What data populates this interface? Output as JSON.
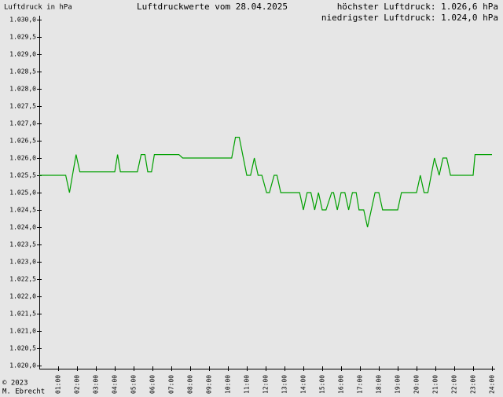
{
  "chart_data": {
    "type": "line",
    "title": "Luftdruckwerte vom 28.04.2025",
    "y_label": "Luftdruck in hPa",
    "annotations": [
      "höchster Luftdruck: 1.026,6 hPa",
      "niedrigster Luftdruck: 1.024,0 hPa"
    ],
    "footer": [
      "© 2023",
      "M. Ebrecht"
    ],
    "x": [
      0,
      1.4,
      1.6,
      1.95,
      2.15,
      4.0,
      4.15,
      4.3,
      5.2,
      5.4,
      5.6,
      5.75,
      5.95,
      6.1,
      7.4,
      7.6,
      10.2,
      10.4,
      10.6,
      11.0,
      11.2,
      11.4,
      11.6,
      11.8,
      12.05,
      12.2,
      12.45,
      12.6,
      12.8,
      13.8,
      14.0,
      14.2,
      14.4,
      14.6,
      14.8,
      15.0,
      15.2,
      15.5,
      15.6,
      15.8,
      16.0,
      16.2,
      16.4,
      16.6,
      16.8,
      16.95,
      17.2,
      17.4,
      17.8,
      18.0,
      18.2,
      19.0,
      19.2,
      20.0,
      20.2,
      20.4,
      20.6,
      20.95,
      21.2,
      21.4,
      21.6,
      21.8,
      22.8,
      23.0,
      23.1,
      24.0
    ],
    "series": [
      {
        "name": "Luftdruck",
        "color": "#00a000",
        "values": [
          1025.5,
          1025.5,
          1025.0,
          1026.1,
          1025.6,
          1025.6,
          1026.1,
          1025.6,
          1025.6,
          1026.1,
          1026.1,
          1025.6,
          1025.6,
          1026.1,
          1026.1,
          1026.0,
          1026.0,
          1026.6,
          1026.6,
          1025.5,
          1025.5,
          1026.0,
          1025.5,
          1025.5,
          1025.0,
          1025.0,
          1025.5,
          1025.5,
          1025.0,
          1025.0,
          1024.5,
          1025.0,
          1025.0,
          1024.5,
          1025.0,
          1024.5,
          1024.5,
          1025.0,
          1025.0,
          1024.5,
          1025.0,
          1025.0,
          1024.5,
          1025.0,
          1025.0,
          1024.5,
          1024.5,
          1024.0,
          1025.0,
          1025.0,
          1024.5,
          1024.5,
          1025.0,
          1025.0,
          1025.5,
          1025.0,
          1025.0,
          1026.0,
          1025.5,
          1026.0,
          1026.0,
          1025.5,
          1025.5,
          1025.5,
          1026.1,
          1026.1
        ]
      }
    ],
    "xlim": [
      0,
      24
    ],
    "xticks": [
      {
        "value": 1,
        "label": "01:00"
      },
      {
        "value": 2,
        "label": "02:00"
      },
      {
        "value": 3,
        "label": "03:00"
      },
      {
        "value": 4,
        "label": "04:00"
      },
      {
        "value": 5,
        "label": "05:00"
      },
      {
        "value": 6,
        "label": "06:00"
      },
      {
        "value": 7,
        "label": "07:00"
      },
      {
        "value": 8,
        "label": "08:00"
      },
      {
        "value": 9,
        "label": "09:00"
      },
      {
        "value": 10,
        "label": "10:00"
      },
      {
        "value": 11,
        "label": "11:00"
      },
      {
        "value": 12,
        "label": "12:00"
      },
      {
        "value": 13,
        "label": "13:00"
      },
      {
        "value": 14,
        "label": "14:00"
      },
      {
        "value": 15,
        "label": "15:00"
      },
      {
        "value": 16,
        "label": "16:00"
      },
      {
        "value": 17,
        "label": "17:00"
      },
      {
        "value": 18,
        "label": "18:00"
      },
      {
        "value": 19,
        "label": "19:00"
      },
      {
        "value": 20,
        "label": "20:00"
      },
      {
        "value": 21,
        "label": "21:00"
      },
      {
        "value": 22,
        "label": "22:00"
      },
      {
        "value": 23,
        "label": "23:00"
      },
      {
        "value": 24,
        "label": "24:00"
      }
    ],
    "ylim": [
      1020,
      1030
    ],
    "yticks": [
      {
        "value": 1020,
        "label": "1.020,0"
      },
      {
        "value": 1020.5,
        "label": "1.020,5"
      },
      {
        "value": 1021,
        "label": "1.021,0"
      },
      {
        "value": 1021.5,
        "label": "1.021,5"
      },
      {
        "value": 1022,
        "label": "1.022,0"
      },
      {
        "value": 1022.5,
        "label": "1.022,5"
      },
      {
        "value": 1023,
        "label": "1.023,0"
      },
      {
        "value": 1023.5,
        "label": "1.023,5"
      },
      {
        "value": 1024,
        "label": "1.024,0"
      },
      {
        "value": 1024.5,
        "label": "1.024,5"
      },
      {
        "value": 1025,
        "label": "1.025,0"
      },
      {
        "value": 1025.5,
        "label": "1.025,5"
      },
      {
        "value": 1026,
        "label": "1.026,0"
      },
      {
        "value": 1026.5,
        "label": "1.026,5"
      },
      {
        "value": 1027,
        "label": "1.027,0"
      },
      {
        "value": 1027.5,
        "label": "1.027,5"
      },
      {
        "value": 1028,
        "label": "1.028,0"
      },
      {
        "value": 1028.5,
        "label": "1.028,5"
      },
      {
        "value": 1029,
        "label": "1.029,0"
      },
      {
        "value": 1029.5,
        "label": "1.029,5"
      },
      {
        "value": 1030,
        "label": "1.030,0"
      }
    ],
    "grid": false
  }
}
